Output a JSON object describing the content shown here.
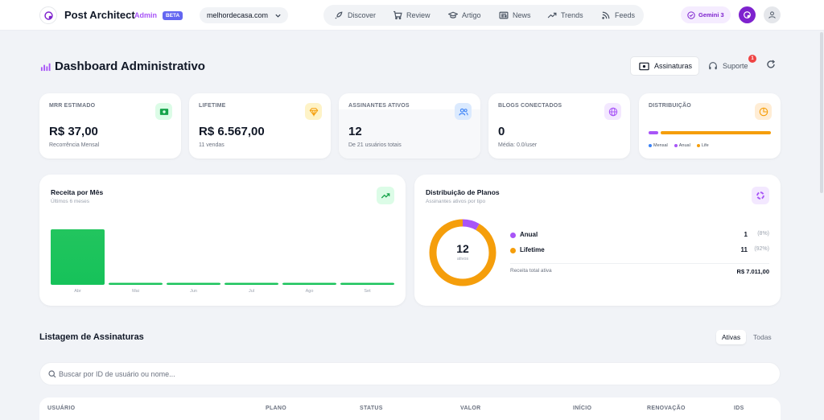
{
  "nav": {
    "brand": "Post Architect",
    "admin_label": "Admin",
    "beta_label": "BETA",
    "site": "melhordecasa.com",
    "menu": [
      {
        "label": "Discover",
        "icon": "rocket-icon"
      },
      {
        "label": "Review",
        "icon": "cart-icon"
      },
      {
        "label": "Artigo",
        "icon": "graduation-cap-icon"
      },
      {
        "label": "News",
        "icon": "newspaper-icon"
      },
      {
        "label": "Trends",
        "icon": "trending-up-icon"
      },
      {
        "label": "Feeds",
        "icon": "rss-icon"
      }
    ],
    "gemini_label": "Gemini 3"
  },
  "header": {
    "title": "Dashboard Administrativo",
    "subscriptions_button": "Assinaturas",
    "support_button": "Suporte",
    "support_badge": "1"
  },
  "stats": [
    {
      "label": "MRR ESTIMADO",
      "value": "R$ 37,00",
      "sub": "Recorrência Mensal",
      "icon": "money-icon",
      "color": "#16a34a"
    },
    {
      "label": "LIFETIME",
      "value": "R$ 6.567,00",
      "sub": "11 vendas",
      "icon": "diamond-icon",
      "color": "#f59e0b"
    },
    {
      "label": "ASSINANTES ATIVOS",
      "value": "12",
      "sub": "De 21 usuários totais",
      "icon": "users-icon",
      "color": "#3b82f6"
    },
    {
      "label": "BLOGS CONECTADOS",
      "value": "0",
      "sub": "Média: 0.0/user",
      "icon": "globe-icon",
      "color": "#a855f7"
    }
  ],
  "distribution_card": {
    "label": "DISTRIBUIÇÃO",
    "legend": [
      {
        "name": "Mensal",
        "color": "#3b82f6"
      },
      {
        "name": "Anual",
        "color": "#a855f7"
      },
      {
        "name": "Life",
        "color": "#f59e0b"
      }
    ],
    "shares": {
      "Mensal": 0,
      "Anual": 0.08,
      "Life": 0.92
    }
  },
  "revenue_panel": {
    "title": "Receita por Mês",
    "subtitle": "Últimos 6 meses"
  },
  "plans_panel": {
    "title": "Distribuição de Planos",
    "subtitle": "Assinantes ativos por tipo",
    "center_value": "12",
    "center_label": "ativos",
    "plans": [
      {
        "name": "Anual",
        "count": "1",
        "pct": "(8%)",
        "color": "#a855f7"
      },
      {
        "name": "Lifetime",
        "count": "11",
        "pct": "(92%)",
        "color": "#f59e0b"
      }
    ],
    "total_label": "Receita total ativa",
    "total_value": "R$ 7.011,00"
  },
  "chart_data": [
    {
      "type": "bar",
      "categories": [
        "Abr",
        "Mai",
        "Jun",
        "Jul",
        "Ago",
        "Set"
      ],
      "values": [
        6567,
        37,
        37,
        37,
        37,
        37
      ],
      "title": "Receita por Mês",
      "subtitle": "Últimos 6 meses",
      "color": "#22c55e"
    },
    {
      "type": "pie",
      "categories": [
        "Anual",
        "Lifetime"
      ],
      "values": [
        1,
        11
      ],
      "colors": [
        "#a855f7",
        "#f59e0b"
      ],
      "title": "Distribuição de Planos"
    }
  ],
  "listing": {
    "title": "Listagem de Assinaturas",
    "tabs": [
      {
        "label": "Ativas",
        "active": true
      },
      {
        "label": "Todas",
        "active": false
      }
    ],
    "search_placeholder": "Buscar por ID de usuário ou nome...",
    "columns": [
      "USUÁRIO",
      "PLANO",
      "STATUS",
      "VALOR",
      "INÍCIO",
      "RENOVAÇÃO",
      "IDS"
    ]
  }
}
